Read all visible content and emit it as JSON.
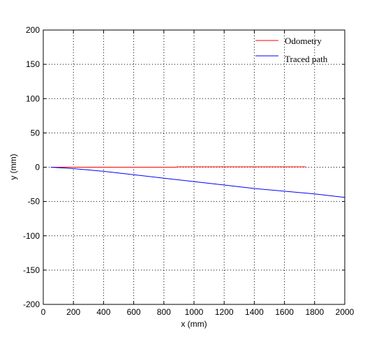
{
  "chart_data": {
    "type": "line",
    "title": "",
    "xlabel": "x (mm)",
    "ylabel": "y (mm)",
    "xlim": [
      0,
      2000
    ],
    "ylim": [
      -200,
      200
    ],
    "xticks": [
      0,
      200,
      400,
      600,
      800,
      1000,
      1200,
      1400,
      1600,
      1800,
      2000
    ],
    "yticks": [
      -200,
      -150,
      -100,
      -50,
      0,
      50,
      100,
      150,
      200
    ],
    "xtick_labels": [
      "0",
      "200",
      "400",
      "600",
      "800",
      "1000",
      "1200",
      "1400",
      "1600",
      "1800",
      "2000"
    ],
    "ytick_labels": [
      "-200",
      "-150",
      "-100",
      "-50",
      "0",
      "50",
      "100",
      "150",
      "200"
    ],
    "grid": true,
    "legend_position": "top-right",
    "series": [
      {
        "name": "Odometry",
        "color": "#ff0000",
        "x": [
          50,
          300,
          600,
          880,
          890,
          1200,
          1500,
          1740
        ],
        "y": [
          0,
          0,
          0,
          0,
          0.5,
          0.5,
          0.5,
          0.5
        ]
      },
      {
        "name": "Traced path",
        "color": "#0000ff",
        "x": [
          50,
          200,
          400,
          600,
          800,
          1000,
          1200,
          1400,
          1600,
          1800,
          2000
        ],
        "y": [
          0,
          -2,
          -6,
          -11,
          -16,
          -21,
          -26,
          -31,
          -35,
          -39,
          -44
        ]
      }
    ]
  }
}
